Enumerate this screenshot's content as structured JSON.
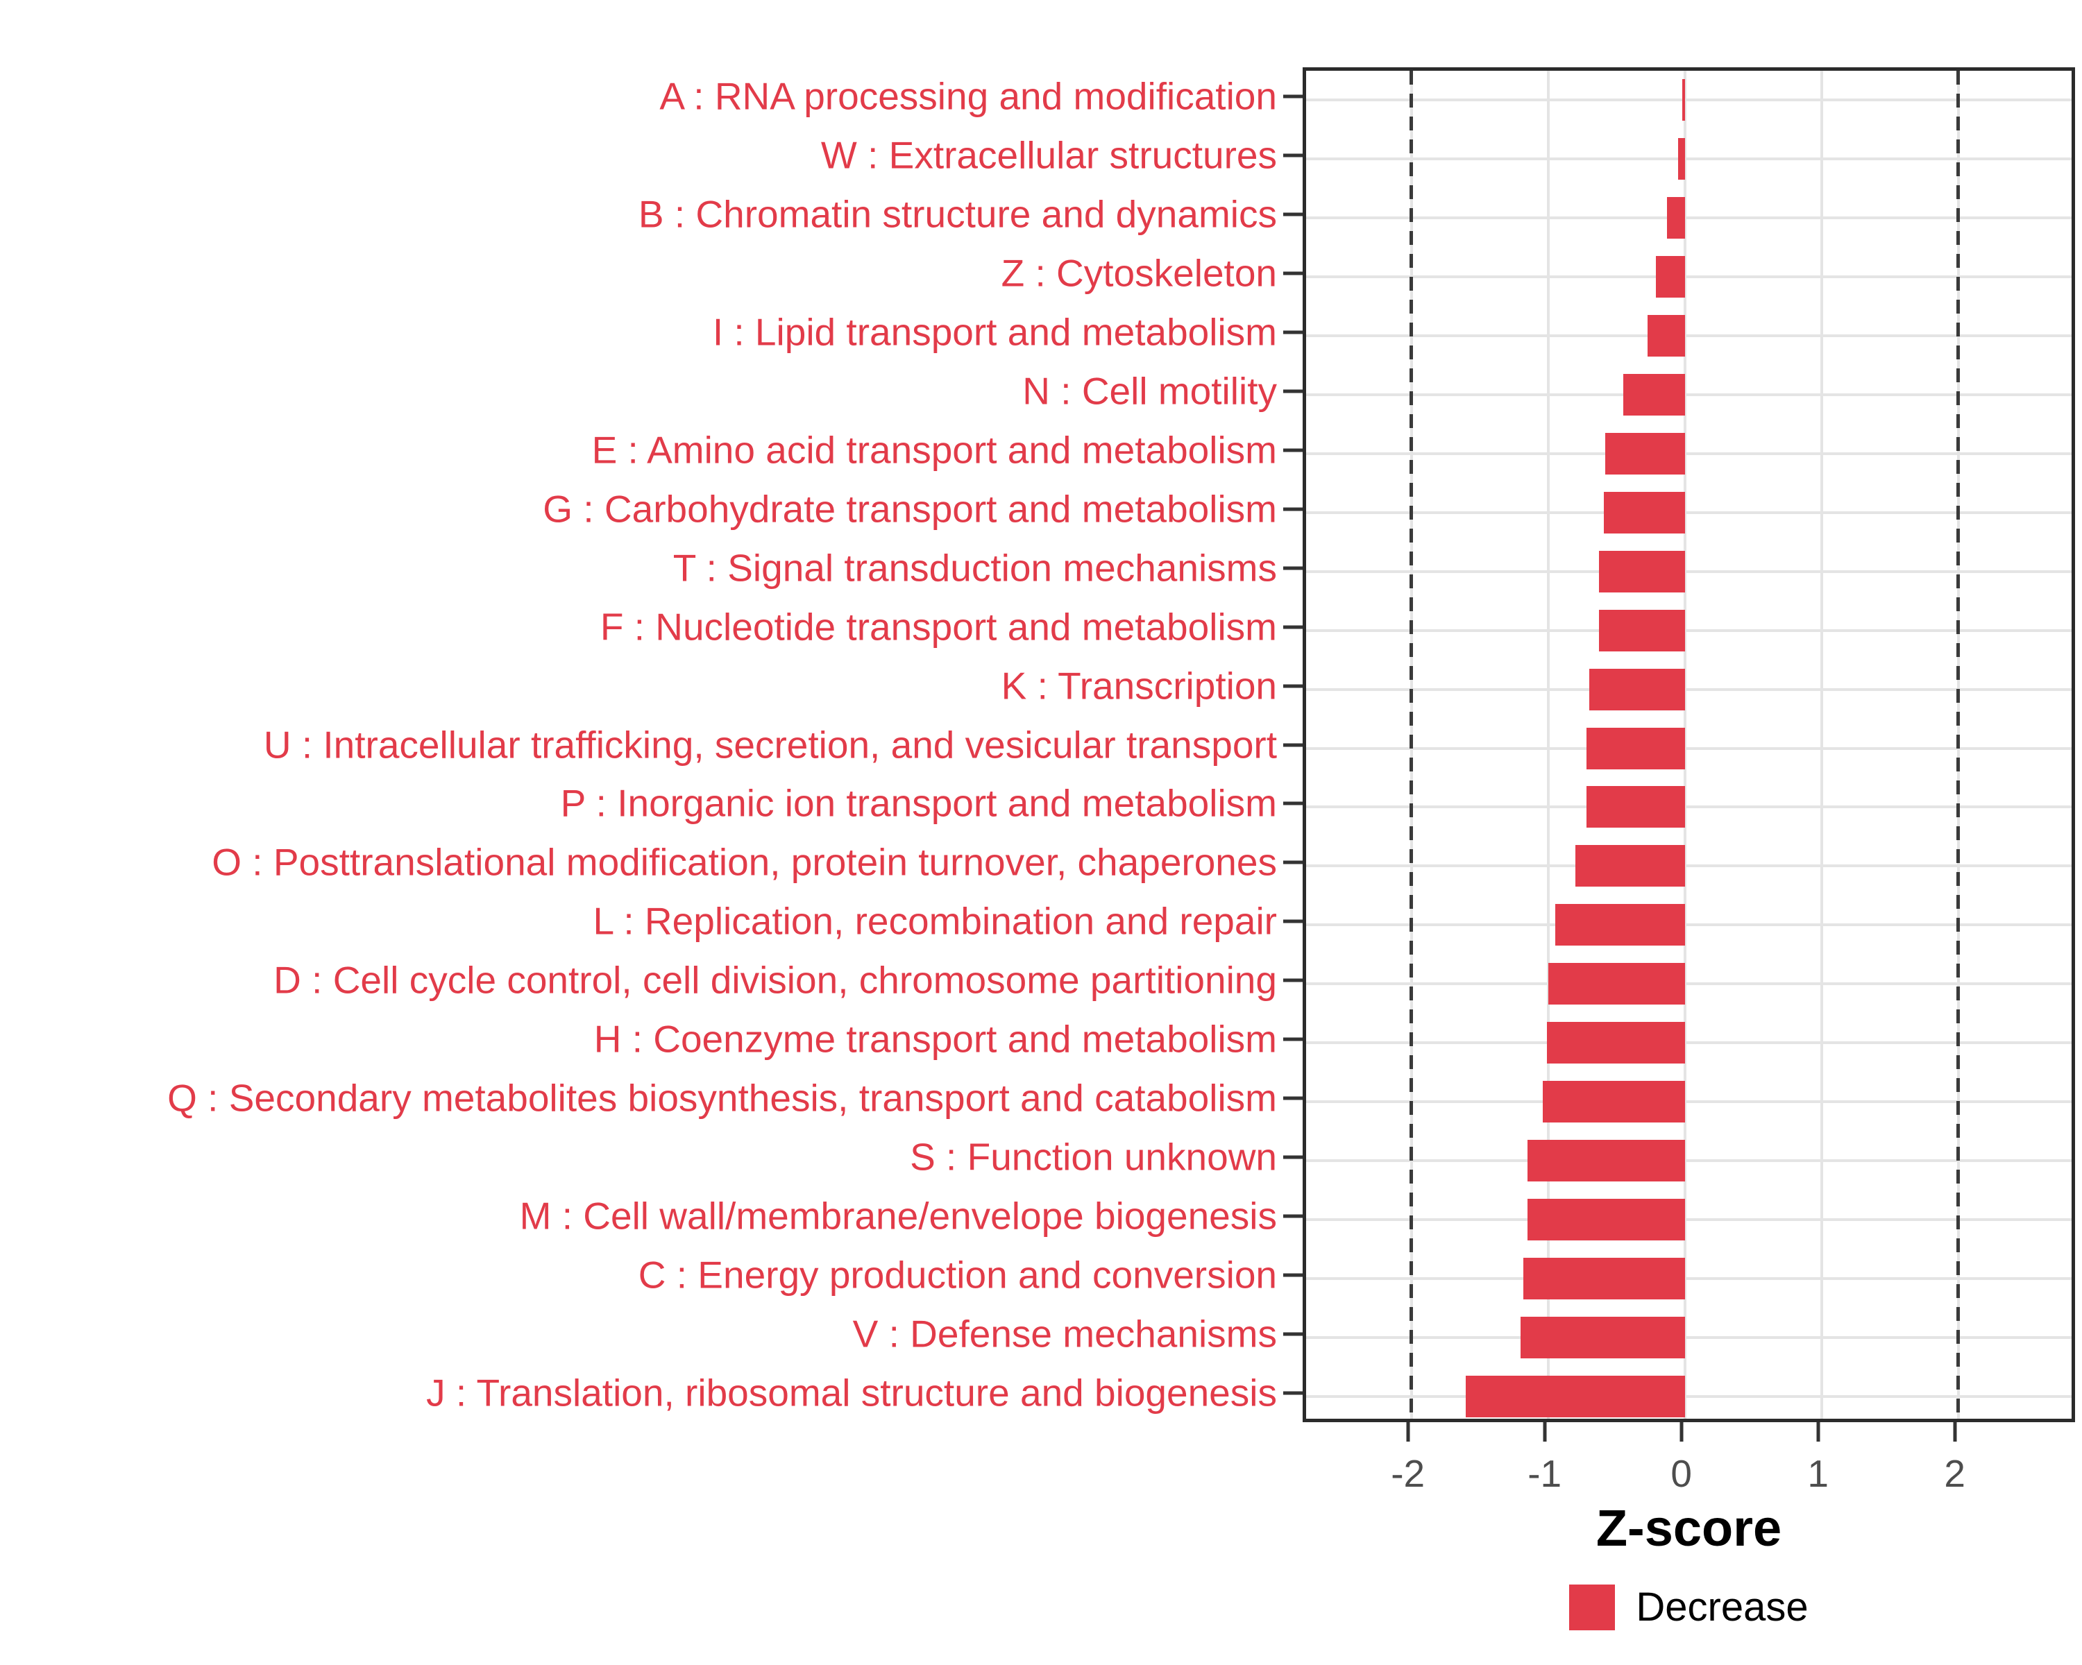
{
  "chart_data": {
    "type": "bar",
    "orientation": "horizontal",
    "title": "",
    "xlabel": "Z-score",
    "ylabel": "",
    "x_ticks": [
      -2,
      -1,
      0,
      1,
      2
    ],
    "x_tick_labels": [
      "-2",
      "-1",
      "0",
      "1",
      "2"
    ],
    "xlim": [
      -2.77,
      2.88
    ],
    "vlines_dashed": [
      -2,
      2
    ],
    "grid": "major-on",
    "legend_position": "bottom",
    "bar_color": "#e23b49",
    "category_label_color": "#e23b49",
    "axis_text_color": "#4d4d4d",
    "dashed_line_color": "#3a3a3a",
    "categories": [
      "A : RNA processing and modification",
      "W : Extracellular structures",
      "B : Chromatin structure and dynamics",
      "Z : Cytoskeleton",
      "I : Lipid transport and metabolism",
      "N : Cell motility",
      "E : Amino acid transport and metabolism",
      "G : Carbohydrate transport and metabolism",
      "T : Signal transduction mechanisms",
      "F : Nucleotide transport and metabolism",
      "K : Transcription",
      "U : Intracellular trafficking, secretion, and vesicular transport",
      "P : Inorganic ion transport and metabolism",
      "O : Posttranslational modification, protein turnover, chaperones",
      "L : Replication, recombination and repair",
      "D : Cell cycle control, cell division, chromosome partitioning",
      "H : Coenzyme transport and metabolism",
      "Q : Secondary metabolites biosynthesis, transport and catabolism",
      "S : Function unknown",
      "M : Cell wall/membrane/envelope biogenesis",
      "C : Energy production and conversion",
      "V : Defense mechanisms",
      "J : Translation, ribosomal structure and biogenesis"
    ],
    "series": [
      {
        "name": "Decrease",
        "color": "#e23b49",
        "values": [
          -0.02,
          -0.05,
          -0.13,
          -0.21,
          -0.27,
          -0.45,
          -0.58,
          -0.59,
          -0.63,
          -0.63,
          -0.7,
          -0.72,
          -0.72,
          -0.8,
          -0.95,
          -1.0,
          -1.01,
          -1.04,
          -1.15,
          -1.15,
          -1.18,
          -1.2,
          -1.6
        ]
      }
    ],
    "legend": {
      "items": [
        {
          "label": "Decrease",
          "color": "#e23b49"
        }
      ]
    }
  }
}
